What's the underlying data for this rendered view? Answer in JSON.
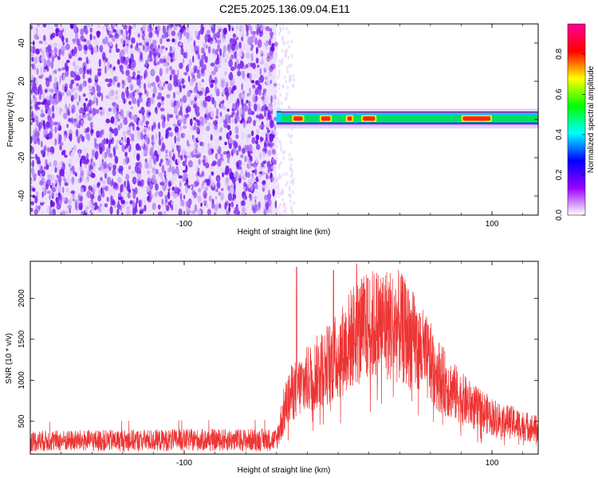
{
  "title": "C2E5.2025.136.09.04.E11",
  "chart_data": [
    {
      "type": "heatmap",
      "xlabel": "Height of straight line (km)",
      "ylabel": "Frequency (Hz)",
      "xlim": [
        -200,
        130
      ],
      "ylim": [
        -50,
        50
      ],
      "xticks": [
        -100,
        100
      ],
      "xtick_labels": [
        "-100",
        "100"
      ],
      "yticks": [
        -40,
        -20,
        0,
        20,
        40
      ],
      "ytick_labels": [
        "-40",
        "-20",
        "0",
        "20",
        "40"
      ],
      "noise_region_x": [
        -200,
        -40
      ],
      "echo_trace": {
        "x_start": -40,
        "x_end": 130,
        "center_frequency": 0.5,
        "half_width": 2,
        "high_intensity_x": [
          [
            -30,
            -22
          ],
          [
            -12,
            -4
          ],
          [
            5,
            10
          ],
          [
            15,
            25
          ],
          [
            80,
            100
          ]
        ]
      },
      "colorbar": {
        "label": "Normalized spectral amplitude",
        "range": [
          0,
          0.95
        ],
        "ticks": [
          0.0,
          0.2,
          0.4,
          0.6,
          0.8
        ],
        "tick_labels": [
          "0.0",
          "0.2",
          "0.4",
          "0.6",
          "0.8"
        ],
        "colors": [
          "#ffffff",
          "#9900ff",
          "#0000ff",
          "#00ffff",
          "#00ff00",
          "#ffff00",
          "#ff0000",
          "#ff0099"
        ]
      }
    },
    {
      "type": "line",
      "xlabel": "Height of straight line (km)",
      "ylabel": "SNR (10 * v/v)",
      "xlim": [
        -200,
        130
      ],
      "ylim": [
        100,
        2450
      ],
      "xticks": [
        -100,
        100
      ],
      "xtick_labels": [
        "-100",
        "100"
      ],
      "yticks": [
        500,
        1000,
        1500,
        2000
      ],
      "ytick_labels": [
        "500",
        "1000",
        "1500",
        "2000"
      ],
      "series_color": "#ee3333",
      "envelope": {
        "x": [
          -200,
          -150,
          -100,
          -60,
          -40,
          -34,
          -30,
          -20,
          -10,
          0,
          10,
          20,
          30,
          40,
          50,
          60,
          70,
          80,
          90,
          100,
          110,
          120,
          130
        ],
        "y": [
          260,
          265,
          270,
          272,
          275,
          700,
          850,
          1000,
          1150,
          1300,
          1550,
          1650,
          1700,
          1650,
          1450,
          1200,
          950,
          780,
          650,
          560,
          500,
          450,
          400
        ]
      },
      "spikes": [
        {
          "x": -27,
          "y": 2380
        },
        {
          "x": -3,
          "y": 2340
        },
        {
          "x": 12,
          "y": 2420
        }
      ]
    }
  ]
}
